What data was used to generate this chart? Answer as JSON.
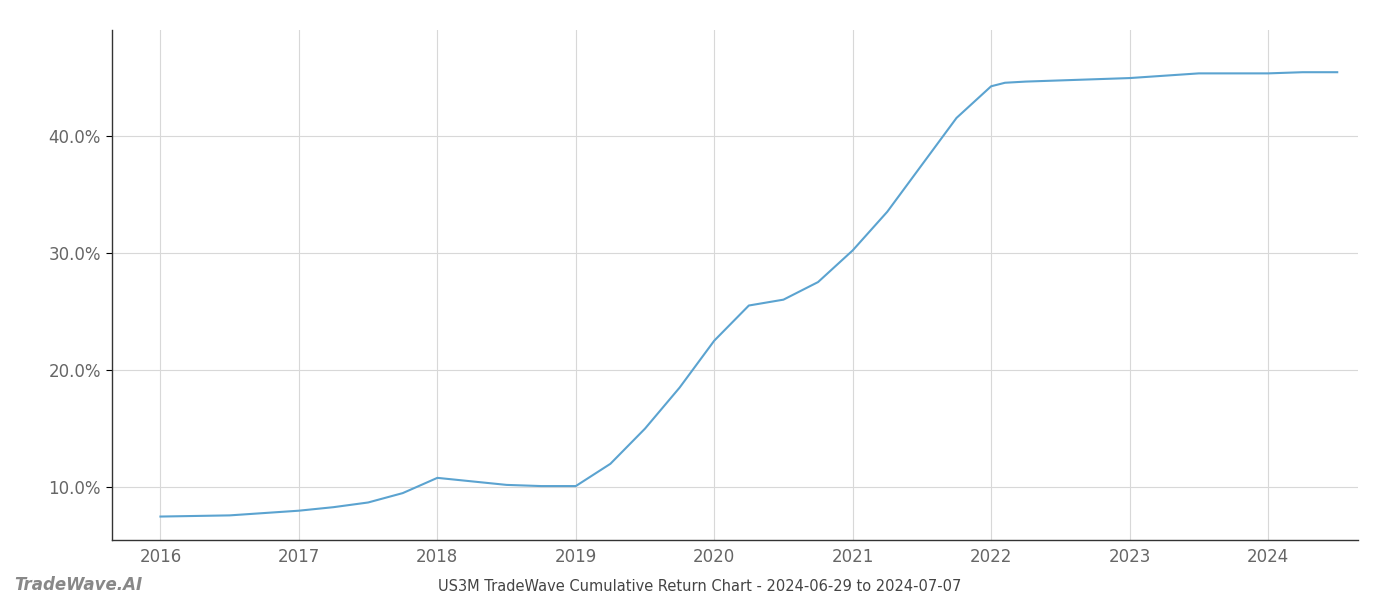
{
  "title": "US3M TradeWave Cumulative Return Chart - 2024-06-29 to 2024-07-07",
  "watermark": "TradeWave.AI",
  "line_color": "#5ba3d0",
  "background_color": "#ffffff",
  "grid_color": "#d8d8d8",
  "x_values": [
    2016.0,
    2016.25,
    2016.5,
    2016.75,
    2017.0,
    2017.25,
    2017.5,
    2017.75,
    2018.0,
    2018.25,
    2018.5,
    2018.75,
    2019.0,
    2019.25,
    2019.5,
    2019.75,
    2020.0,
    2020.25,
    2020.5,
    2020.75,
    2021.0,
    2021.25,
    2021.5,
    2021.75,
    2022.0,
    2022.1,
    2022.25,
    2022.5,
    2022.75,
    2023.0,
    2023.25,
    2023.5,
    2023.75,
    2024.0,
    2024.25,
    2024.5
  ],
  "y_values": [
    7.5,
    7.55,
    7.6,
    7.8,
    8.0,
    8.3,
    8.7,
    9.5,
    10.8,
    10.5,
    10.2,
    10.1,
    10.1,
    12.0,
    15.0,
    18.5,
    22.5,
    25.5,
    26.0,
    27.5,
    30.2,
    33.5,
    37.5,
    41.5,
    44.2,
    44.5,
    44.6,
    44.7,
    44.8,
    44.9,
    45.1,
    45.3,
    45.3,
    45.3,
    45.4,
    45.4
  ],
  "xlim": [
    2015.65,
    2024.65
  ],
  "ylim": [
    5.5,
    49.0
  ],
  "yticks": [
    10.0,
    20.0,
    30.0,
    40.0
  ],
  "xticks": [
    2016,
    2017,
    2018,
    2019,
    2020,
    2021,
    2022,
    2023,
    2024
  ],
  "line_width": 1.5,
  "title_fontsize": 10.5,
  "tick_fontsize": 12,
  "watermark_fontsize": 12,
  "spine_color": "#333333",
  "tick_color": "#666666"
}
